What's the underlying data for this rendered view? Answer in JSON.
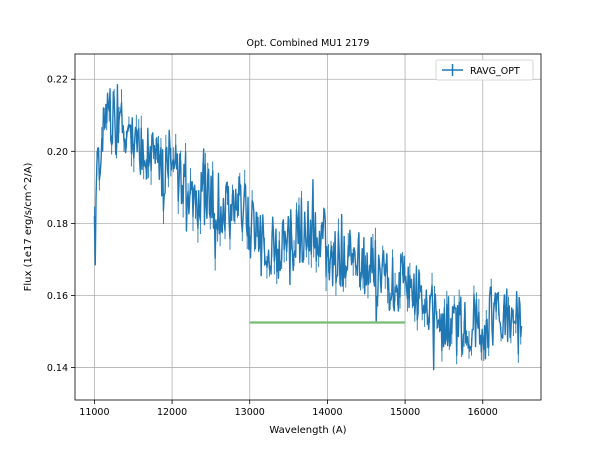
{
  "chart_data": {
    "type": "line",
    "title": "Opt. Combined MU1 2179",
    "xlabel": "Wavelength (A)",
    "ylabel": "Flux (1e17 erg/s/cm^2/A)",
    "xlim": [
      10750,
      16750
    ],
    "ylim": [
      0.131,
      0.227
    ],
    "xticks": [
      11000,
      12000,
      13000,
      14000,
      15000,
      16000
    ],
    "yticks": [
      0.14,
      0.16,
      0.18,
      0.2,
      0.22
    ],
    "grid": true,
    "legend": {
      "placement": "top-right",
      "entries": [
        "RAVG_OPT"
      ]
    },
    "series": [
      {
        "name": "RAVG_OPT",
        "color": "#1f77b4",
        "style": "errorbar-line",
        "x_start": 11000,
        "x_end": 16500,
        "trend_x": [
          11000,
          11100,
          11200,
          11400,
          11600,
          11800,
          12000,
          12200,
          12400,
          12600,
          12800,
          12900,
          13000,
          13200,
          13400,
          13600,
          13800,
          14000,
          14200,
          14400,
          14600,
          14800,
          15000,
          15200,
          15400,
          15600,
          15800,
          16000,
          16200,
          16500
        ],
        "trend_y": [
          0.183,
          0.205,
          0.21,
          0.205,
          0.2,
          0.196,
          0.194,
          0.191,
          0.188,
          0.185,
          0.181,
          0.186,
          0.178,
          0.174,
          0.173,
          0.176,
          0.179,
          0.172,
          0.17,
          0.168,
          0.167,
          0.164,
          0.163,
          0.159,
          0.154,
          0.152,
          0.151,
          0.153,
          0.154,
          0.152
        ],
        "noise_amplitude": 0.009
      },
      {
        "name": "",
        "color": "#77bb77",
        "style": "line",
        "x": [
          13000,
          15000
        ],
        "y": [
          0.1525,
          0.1525
        ]
      }
    ]
  }
}
